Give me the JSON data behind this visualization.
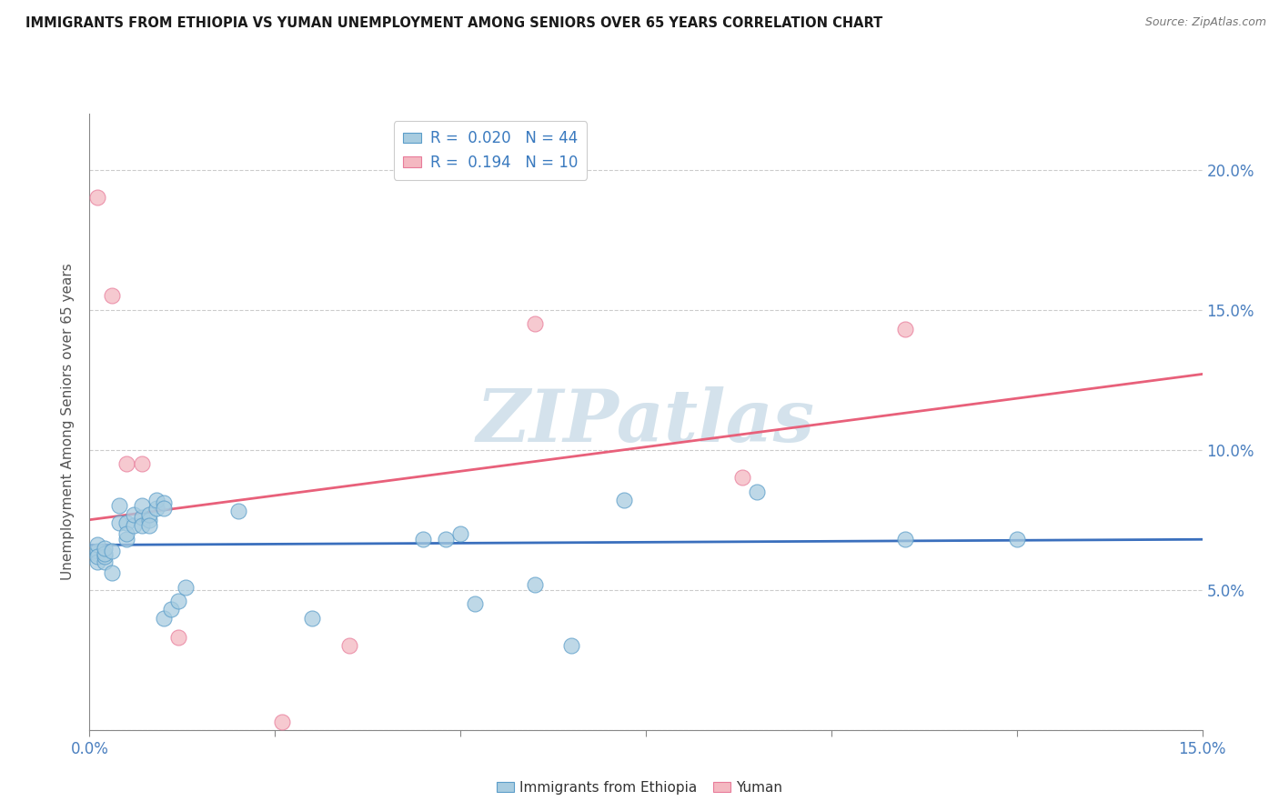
{
  "title": "IMMIGRANTS FROM ETHIOPIA VS YUMAN UNEMPLOYMENT AMONG SENIORS OVER 65 YEARS CORRELATION CHART",
  "source": "Source: ZipAtlas.com",
  "ylabel": "Unemployment Among Seniors over 65 years",
  "xlim": [
    0.0,
    0.15
  ],
  "ylim": [
    0.0,
    0.22
  ],
  "x_ticks": [
    0.0,
    0.025,
    0.05,
    0.075,
    0.1,
    0.125,
    0.15
  ],
  "x_tick_labels": [
    "0.0%",
    "",
    "",
    "",
    "",
    "",
    "15.0%"
  ],
  "y_ticks": [
    0.0,
    0.05,
    0.1,
    0.15,
    0.2
  ],
  "y_tick_labels_right": [
    "",
    "5.0%",
    "10.0%",
    "15.0%",
    "20.0%"
  ],
  "legend_label1": "R =  0.020   N = 44",
  "legend_label2": "R =  0.194   N = 10",
  "blue_color": "#a8cce0",
  "pink_color": "#f4b8c1",
  "blue_edge_color": "#5b9dc9",
  "pink_edge_color": "#e87b9a",
  "blue_line_color": "#3a6fbd",
  "pink_line_color": "#e8607a",
  "watermark": "ZIPatlas",
  "watermark_color": "#b8d0e0",
  "blue_scatter_x": [
    0.001,
    0.001,
    0.001,
    0.001,
    0.001,
    0.002,
    0.002,
    0.002,
    0.002,
    0.003,
    0.003,
    0.004,
    0.004,
    0.005,
    0.005,
    0.005,
    0.006,
    0.006,
    0.007,
    0.007,
    0.007,
    0.008,
    0.008,
    0.008,
    0.009,
    0.009,
    0.01,
    0.01,
    0.01,
    0.011,
    0.012,
    0.013,
    0.02,
    0.03,
    0.045,
    0.048,
    0.05,
    0.052,
    0.06,
    0.065,
    0.072,
    0.09,
    0.11,
    0.125
  ],
  "blue_scatter_y": [
    0.063,
    0.064,
    0.066,
    0.06,
    0.062,
    0.06,
    0.062,
    0.063,
    0.065,
    0.064,
    0.056,
    0.074,
    0.08,
    0.068,
    0.074,
    0.07,
    0.073,
    0.077,
    0.076,
    0.073,
    0.08,
    0.075,
    0.077,
    0.073,
    0.079,
    0.082,
    0.081,
    0.079,
    0.04,
    0.043,
    0.046,
    0.051,
    0.078,
    0.04,
    0.068,
    0.068,
    0.07,
    0.045,
    0.052,
    0.03,
    0.082,
    0.085,
    0.068,
    0.068
  ],
  "pink_scatter_x": [
    0.001,
    0.003,
    0.005,
    0.007,
    0.012,
    0.026,
    0.035,
    0.06,
    0.088,
    0.11
  ],
  "pink_scatter_y": [
    0.19,
    0.155,
    0.095,
    0.095,
    0.033,
    0.003,
    0.03,
    0.145,
    0.09,
    0.143
  ],
  "blue_trend_x": [
    0.0,
    0.15
  ],
  "blue_trend_y": [
    0.066,
    0.068
  ],
  "pink_trend_x": [
    0.0,
    0.15
  ],
  "pink_trend_y": [
    0.075,
    0.127
  ]
}
